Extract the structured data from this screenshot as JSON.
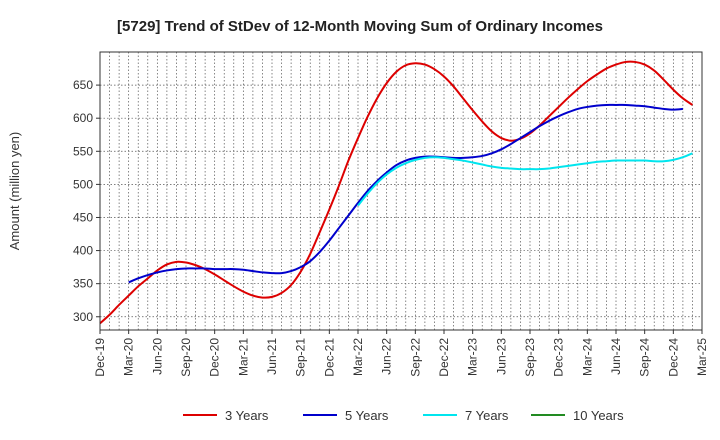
{
  "chart_data": {
    "type": "line",
    "title": "[5729]  Trend of StDev of 12-Month Moving Sum of Ordinary Incomes",
    "xlabel": "",
    "ylabel": "Amount (million yen)",
    "ylim": [
      280,
      700
    ],
    "yticks": [
      300,
      350,
      400,
      450,
      500,
      550,
      600,
      650
    ],
    "grid": true,
    "legend_position": "bottom",
    "x_tick_labels": [
      "Dec-19",
      "Mar-20",
      "Jun-20",
      "Sep-20",
      "Dec-20",
      "Mar-21",
      "Jun-21",
      "Sep-21",
      "Dec-21",
      "Mar-22",
      "Jun-22",
      "Sep-22",
      "Dec-22",
      "Mar-23",
      "Jun-23",
      "Sep-23",
      "Dec-23",
      "Mar-24",
      "Jun-24",
      "Sep-24",
      "Dec-24",
      "Mar-25"
    ],
    "x_range_months": [
      0,
      63
    ],
    "series": [
      {
        "name": "3 Years",
        "color": "#dd0000",
        "points": [
          [
            0,
            290
          ],
          [
            1,
            303
          ],
          [
            2,
            318
          ],
          [
            3,
            332
          ],
          [
            4,
            346
          ],
          [
            5,
            358
          ],
          [
            6,
            370
          ],
          [
            7,
            379
          ],
          [
            8,
            383
          ],
          [
            9,
            382
          ],
          [
            10,
            378
          ],
          [
            11,
            372
          ],
          [
            12,
            364
          ],
          [
            13,
            355
          ],
          [
            14,
            346
          ],
          [
            15,
            338
          ],
          [
            16,
            332
          ],
          [
            17,
            329
          ],
          [
            18,
            330
          ],
          [
            19,
            336
          ],
          [
            20,
            348
          ],
          [
            21,
            368
          ],
          [
            22,
            395
          ],
          [
            23,
            428
          ],
          [
            24,
            462
          ],
          [
            25,
            498
          ],
          [
            26,
            536
          ],
          [
            27,
            570
          ],
          [
            28,
            602
          ],
          [
            29,
            630
          ],
          [
            30,
            653
          ],
          [
            31,
            670
          ],
          [
            32,
            680
          ],
          [
            33,
            683
          ],
          [
            34,
            681
          ],
          [
            35,
            674
          ],
          [
            36,
            663
          ],
          [
            37,
            648
          ],
          [
            38,
            630
          ],
          [
            39,
            612
          ],
          [
            40,
            595
          ],
          [
            41,
            580
          ],
          [
            42,
            570
          ],
          [
            43,
            566
          ],
          [
            44,
            569
          ],
          [
            45,
            577
          ],
          [
            46,
            589
          ],
          [
            47,
            603
          ],
          [
            48,
            617
          ],
          [
            49,
            631
          ],
          [
            50,
            644
          ],
          [
            51,
            656
          ],
          [
            52,
            666
          ],
          [
            53,
            675
          ],
          [
            54,
            681
          ],
          [
            55,
            685
          ],
          [
            56,
            685
          ],
          [
            57,
            681
          ],
          [
            58,
            672
          ],
          [
            59,
            658
          ],
          [
            60,
            643
          ],
          [
            61,
            630
          ],
          [
            62,
            620
          ]
        ]
      },
      {
        "name": "5 Years",
        "color": "#0000cc",
        "points": [
          [
            3,
            352
          ],
          [
            4,
            358
          ],
          [
            5,
            363
          ],
          [
            6,
            367
          ],
          [
            7,
            370
          ],
          [
            8,
            372
          ],
          [
            9,
            373
          ],
          [
            10,
            373
          ],
          [
            11,
            373
          ],
          [
            12,
            372
          ],
          [
            13,
            372
          ],
          [
            14,
            372
          ],
          [
            15,
            371
          ],
          [
            16,
            369
          ],
          [
            17,
            367
          ],
          [
            18,
            366
          ],
          [
            19,
            366
          ],
          [
            20,
            369
          ],
          [
            21,
            375
          ],
          [
            22,
            384
          ],
          [
            23,
            398
          ],
          [
            24,
            415
          ],
          [
            25,
            434
          ],
          [
            26,
            453
          ],
          [
            27,
            472
          ],
          [
            28,
            490
          ],
          [
            29,
            505
          ],
          [
            30,
            518
          ],
          [
            31,
            529
          ],
          [
            32,
            536
          ],
          [
            33,
            540
          ],
          [
            34,
            542
          ],
          [
            35,
            542
          ],
          [
            36,
            541
          ],
          [
            37,
            540
          ],
          [
            38,
            540
          ],
          [
            39,
            541
          ],
          [
            40,
            543
          ],
          [
            41,
            547
          ],
          [
            42,
            553
          ],
          [
            43,
            561
          ],
          [
            44,
            570
          ],
          [
            45,
            579
          ],
          [
            46,
            588
          ],
          [
            47,
            596
          ],
          [
            48,
            603
          ],
          [
            49,
            609
          ],
          [
            50,
            614
          ],
          [
            51,
            617
          ],
          [
            52,
            619
          ],
          [
            53,
            620
          ],
          [
            54,
            620
          ],
          [
            55,
            620
          ],
          [
            56,
            619
          ],
          [
            57,
            618
          ],
          [
            58,
            616
          ],
          [
            59,
            614
          ],
          [
            60,
            613
          ],
          [
            61,
            614
          ]
        ]
      },
      {
        "name": "7 Years",
        "color": "#00e5ee",
        "points": [
          [
            27,
            468
          ],
          [
            28,
            486
          ],
          [
            29,
            502
          ],
          [
            30,
            515
          ],
          [
            31,
            525
          ],
          [
            32,
            532
          ],
          [
            33,
            537
          ],
          [
            34,
            540
          ],
          [
            35,
            541
          ],
          [
            36,
            540
          ],
          [
            37,
            538
          ],
          [
            38,
            536
          ],
          [
            39,
            533
          ],
          [
            40,
            530
          ],
          [
            41,
            527
          ],
          [
            42,
            525
          ],
          [
            43,
            524
          ],
          [
            44,
            523
          ],
          [
            45,
            523
          ],
          [
            46,
            523
          ],
          [
            47,
            524
          ],
          [
            48,
            526
          ],
          [
            49,
            528
          ],
          [
            50,
            530
          ],
          [
            51,
            532
          ],
          [
            52,
            534
          ],
          [
            53,
            535
          ],
          [
            54,
            536
          ],
          [
            55,
            536
          ],
          [
            56,
            536
          ],
          [
            57,
            536
          ],
          [
            58,
            535
          ],
          [
            59,
            535
          ],
          [
            60,
            537
          ],
          [
            61,
            541
          ],
          [
            62,
            547
          ]
        ]
      },
      {
        "name": "10 Years",
        "color": "#228b22",
        "points": []
      }
    ]
  }
}
